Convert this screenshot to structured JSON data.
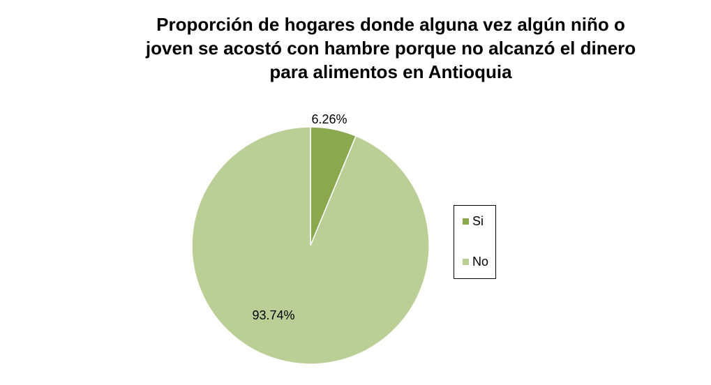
{
  "chart_data": {
    "type": "pie",
    "title_lines": [
      "Proporción de hogares donde alguna vez algún niño o",
      "joven se acostó con hambre porque no alcanzó el dinero",
      "para alimentos  en Antioquia"
    ],
    "categories": [
      "Si",
      "No"
    ],
    "values": [
      6.26,
      93.74
    ],
    "data_labels": [
      "6.26%",
      "93.74%"
    ],
    "colors": [
      "#8aa84e",
      "#bacf95"
    ],
    "legend_position": "right"
  }
}
